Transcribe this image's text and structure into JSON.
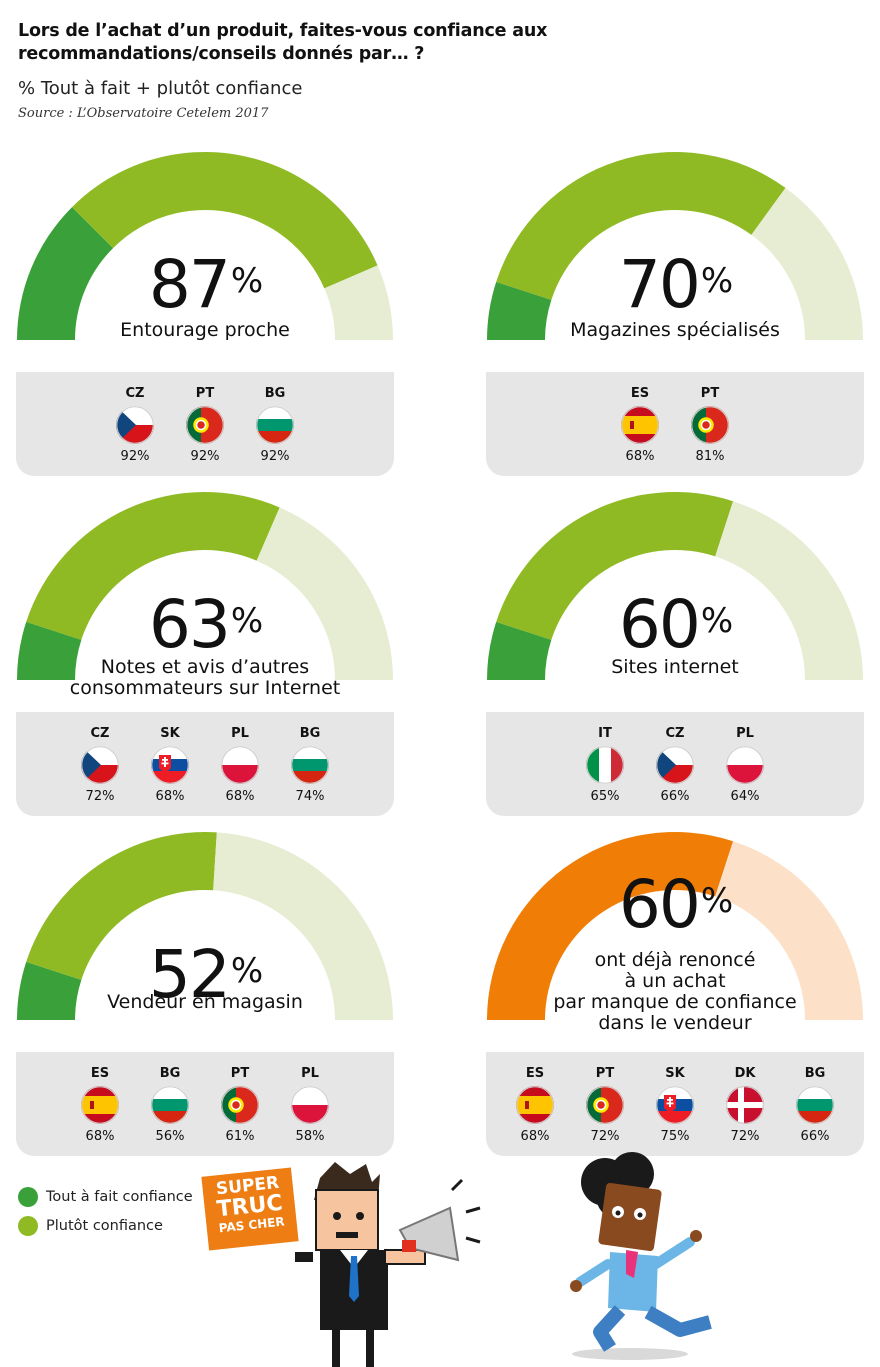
{
  "header": {
    "title": "Lors de l’achat d’un produit, faites-vous confiance aux recommandations/conseils donnés par… ?",
    "subtitle": "% Tout à fait + plutôt confiance",
    "source": "Source : L’Observatoire Cetelem 2017"
  },
  "colors": {
    "dark_green": "#3aa13a",
    "light_green": "#8fba24",
    "pale_green": "#e7edd3",
    "orange": "#f07e06",
    "pale_orange": "#fde0c8",
    "card_bg": "#e6e6e6"
  },
  "chart_data": [
    {
      "type": "gauge",
      "value": 87,
      "unit": "%",
      "label": "Entourage proche",
      "segments": {
        "tout_a_fait": 25,
        "plutot": 62,
        "remaining": 13
      },
      "countries": [
        {
          "code": "CZ",
          "flag": "cz",
          "value": "92%"
        },
        {
          "code": "PT",
          "flag": "pt",
          "value": "92%"
        },
        {
          "code": "BG",
          "flag": "bg",
          "value": "92%"
        }
      ]
    },
    {
      "type": "gauge",
      "value": 70,
      "unit": "%",
      "label": "Magazines spécialisés",
      "segments": {
        "tout_a_fait": 10,
        "plutot": 60,
        "remaining": 30
      },
      "countries": [
        {
          "code": "ES",
          "flag": "es",
          "value": "68%"
        },
        {
          "code": "PT",
          "flag": "pt",
          "value": "81%"
        }
      ]
    },
    {
      "type": "gauge",
      "value": 63,
      "unit": "%",
      "label": "Notes et avis d’autres consommateurs sur Internet",
      "segments": {
        "tout_a_fait": 10,
        "plutot": 53,
        "remaining": 37
      },
      "countries": [
        {
          "code": "CZ",
          "flag": "cz",
          "value": "72%"
        },
        {
          "code": "SK",
          "flag": "sk",
          "value": "68%"
        },
        {
          "code": "PL",
          "flag": "pl",
          "value": "68%"
        },
        {
          "code": "BG",
          "flag": "bg",
          "value": "74%"
        }
      ]
    },
    {
      "type": "gauge",
      "value": 60,
      "unit": "%",
      "label": "Sites internet",
      "segments": {
        "tout_a_fait": 10,
        "plutot": 50,
        "remaining": 40
      },
      "countries": [
        {
          "code": "IT",
          "flag": "it",
          "value": "65%"
        },
        {
          "code": "CZ",
          "flag": "cz",
          "value": "66%"
        },
        {
          "code": "PL",
          "flag": "pl",
          "value": "64%"
        }
      ]
    },
    {
      "type": "gauge",
      "value": 52,
      "unit": "%",
      "label": "Vendeur en magasin",
      "segments": {
        "tout_a_fait": 10,
        "plutot": 42,
        "remaining": 48
      },
      "countries": [
        {
          "code": "ES",
          "flag": "es",
          "value": "68%"
        },
        {
          "code": "BG",
          "flag": "bg",
          "value": "56%"
        },
        {
          "code": "PT",
          "flag": "pt",
          "value": "61%"
        },
        {
          "code": "PL",
          "flag": "pl",
          "value": "58%"
        }
      ]
    },
    {
      "type": "gauge",
      "value": 60,
      "unit": "%",
      "label": "ont déjà renoncé à un achat par manque de confiance dans le vendeur",
      "segments": {
        "orange": 60,
        "remaining": 40
      },
      "countries": [
        {
          "code": "ES",
          "flag": "es",
          "value": "68%"
        },
        {
          "code": "PT",
          "flag": "pt",
          "value": "72%"
        },
        {
          "code": "SK",
          "flag": "sk",
          "value": "75%"
        },
        {
          "code": "DK",
          "flag": "dk",
          "value": "72%"
        },
        {
          "code": "BG",
          "flag": "bg",
          "value": "66%"
        }
      ]
    }
  ],
  "legend": [
    {
      "label": "Tout à fait confiance",
      "color": "#3aa13a"
    },
    {
      "label": "Plutôt confiance",
      "color": "#8fba24"
    }
  ],
  "illustration": {
    "sign_lines": [
      "SUPER",
      "TRUC",
      "PAS CHER"
    ]
  }
}
